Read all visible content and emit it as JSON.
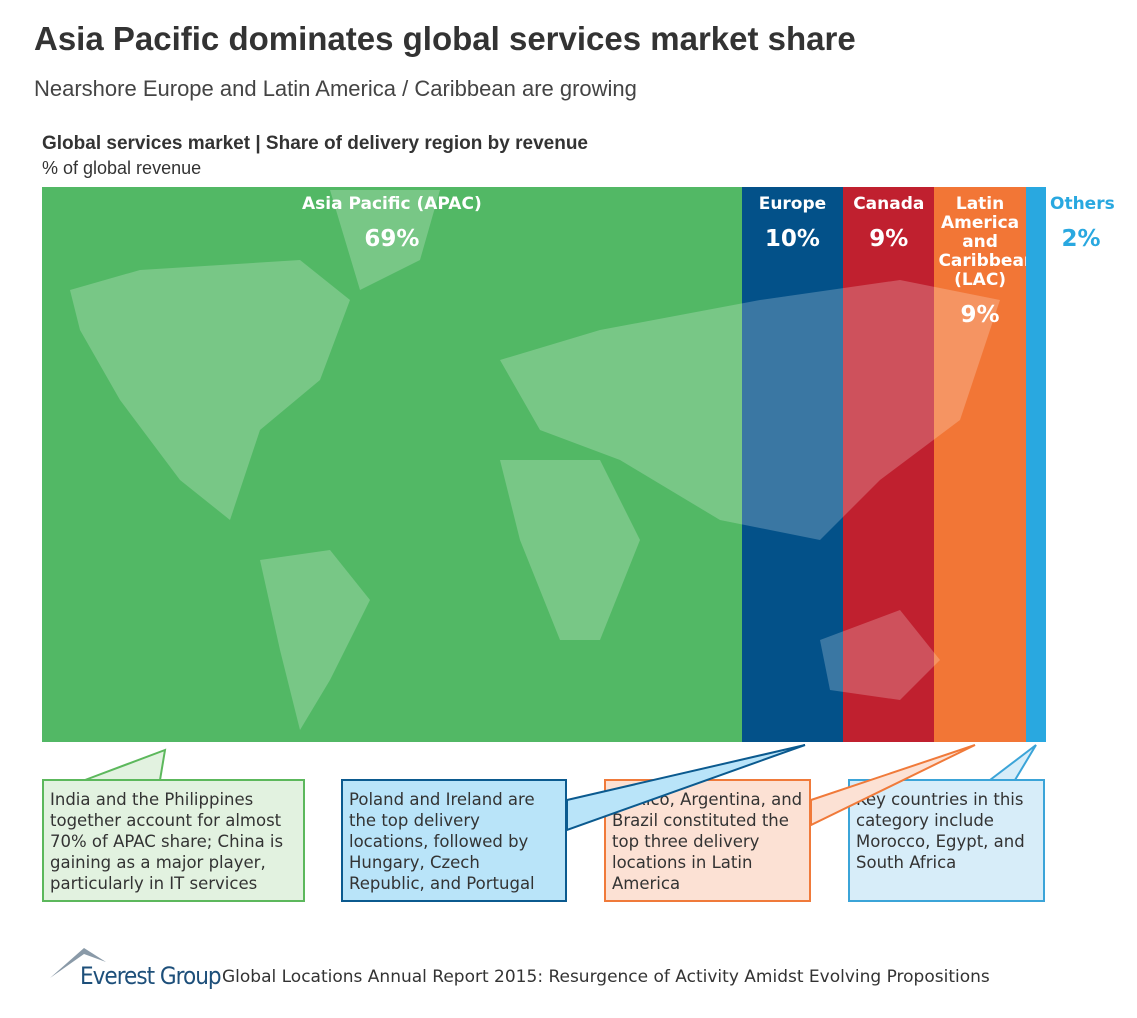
{
  "chart_data": {
    "type": "share-bar",
    "title": "Asia Pacific dominates global services market share",
    "subtitle": "Nearshore Europe and Latin America / Caribbean are growing",
    "chart_title": "Global services market | Share of delivery region by revenue",
    "unit_label": "% of global revenue",
    "categories": [
      "Asia Pacific (APAC)",
      "Europe",
      "Canada",
      "Latin America and Caribbean (LAC)",
      "Others"
    ],
    "values": [
      69,
      10,
      9,
      9,
      2
    ],
    "value_labels": [
      "69%",
      "10%",
      "9%",
      "9%",
      "2%"
    ],
    "colors": [
      "#52b865",
      "#035189",
      "#c0202f",
      "#f27636",
      "#29a8e0"
    ],
    "annotations": [
      {
        "text": "India and the Philippines together account for almost 70% of APAC share; China is gaining as a major player, particularly in IT services",
        "fill": "#e2f2e0",
        "border": "#5cb85c"
      },
      {
        "text": "Poland and Ireland are the top delivery locations, followed by Hungary, Czech Republic, and Portugal",
        "fill": "#b9e4f9",
        "border": "#0b5a8f"
      },
      {
        "text": "Mexico, Argentina, and Brazil constituted the top three delivery locations in Latin America",
        "fill": "#fce1d4",
        "border": "#f07a3a"
      },
      {
        "text": "Key countries in this category include Morocco, Egypt, and South Africa",
        "fill": "#d7edf9",
        "border": "#3ba4d8"
      }
    ]
  },
  "footer": {
    "logo": "Everest Group",
    "source": "Global Locations Annual Report 2015: Resurgence of Activity Amidst Evolving Propositions"
  }
}
